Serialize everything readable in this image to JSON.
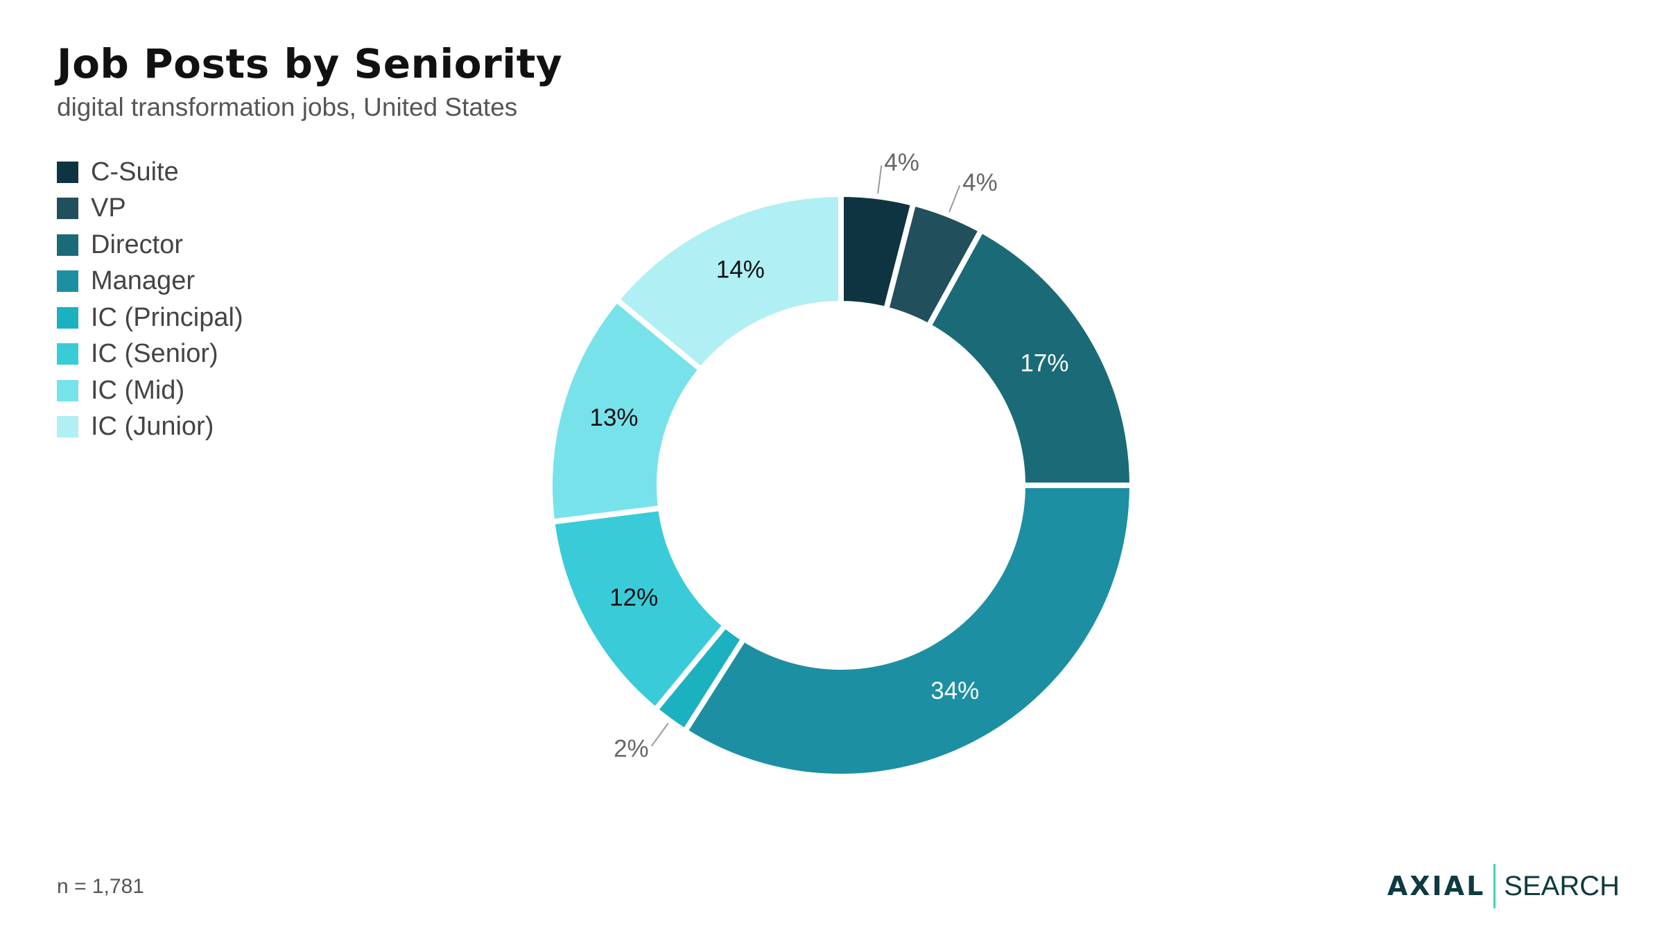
{
  "chart_data": {
    "type": "pie",
    "title": "Job Posts by Seniority",
    "subtitle": "digital transformation jobs, United States",
    "categories": [
      "C-Suite",
      "VP",
      "Director",
      "Manager",
      "IC (Principal)",
      "IC (Senior)",
      "IC (Mid)",
      "IC (Junior)"
    ],
    "values": [
      4,
      4,
      17,
      34,
      2,
      12,
      13,
      14
    ],
    "labels": [
      "4%",
      "4%",
      "17%",
      "34%",
      "2%",
      "12%",
      "13%",
      "14%"
    ],
    "colors": [
      "#0f3441",
      "#214f5c",
      "#1a6b77",
      "#1d8fa2",
      "#1cb1bf",
      "#39cbd8",
      "#78e2eb",
      "#b0eff4"
    ],
    "label_colors": [
      "#666666",
      "#666666",
      "#ffffff",
      "#ffffff",
      "#666666",
      "#111111",
      "#111111",
      "#111111"
    ],
    "outside_labels": [
      true,
      true,
      false,
      false,
      true,
      false,
      false,
      false
    ],
    "legend_position": "top-left",
    "donut": true
  },
  "footnote": "n = 1,781",
  "brand": {
    "left": "AXIAL",
    "right": "SEARCH"
  }
}
